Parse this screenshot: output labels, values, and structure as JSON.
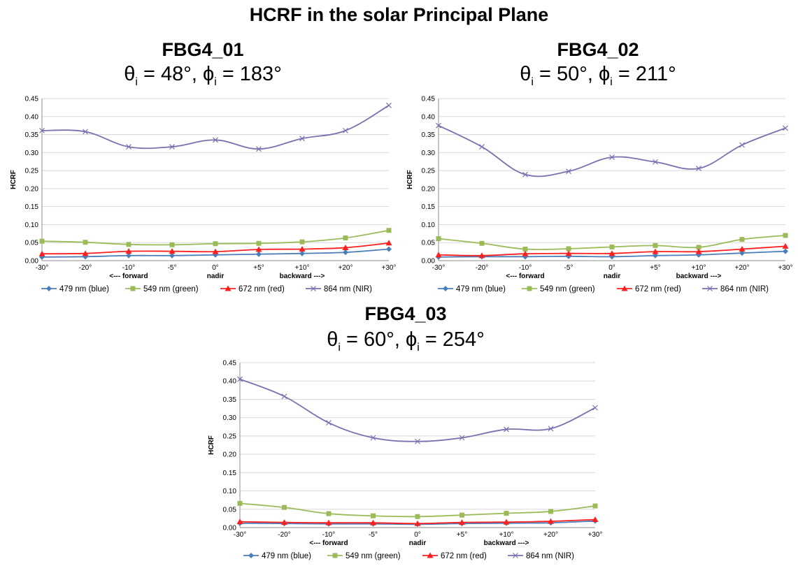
{
  "page_title": "HCRF in the solar Principal Plane",
  "colors": {
    "blue": "#4a7ebb",
    "green": "#9bbb59",
    "red": "#ff1f1f",
    "nir": "#7b6fb0"
  },
  "chart_data": [
    {
      "type": "line",
      "title": "FBG4_01",
      "subtitle": {
        "theta_value": "= 48°, ",
        "phi_value": "= 183°"
      },
      "ylabel": "HCRF",
      "ylim": [
        0,
        0.45
      ],
      "yticks": [
        "0.00",
        "0.05",
        "0.10",
        "0.15",
        "0.20",
        "0.25",
        "0.30",
        "0.35",
        "0.40",
        "0.45"
      ],
      "categories": [
        "-30°",
        "-20°",
        "-10°",
        "-5°",
        "0°",
        "+5°",
        "+10°",
        "+20°",
        "+30°"
      ],
      "direction_labels": {
        "forward": "<--- forward",
        "nadir": "nadir",
        "backward": "backward --->"
      },
      "grid": true,
      "legend_position": "bottom",
      "series": [
        {
          "name": "479 nm (blue)",
          "color": "#4a7ebb",
          "marker": "diamond",
          "values": [
            0.01,
            0.011,
            0.014,
            0.014,
            0.016,
            0.018,
            0.02,
            0.023,
            0.032
          ]
        },
        {
          "name": "549 nm (green)",
          "color": "#9bbb59",
          "marker": "square",
          "values": [
            0.054,
            0.051,
            0.045,
            0.044,
            0.047,
            0.048,
            0.052,
            0.063,
            0.084
          ]
        },
        {
          "name": "672 nm (red)",
          "color": "#ff1f1f",
          "marker": "triangle",
          "values": [
            0.019,
            0.02,
            0.026,
            0.026,
            0.025,
            0.031,
            0.032,
            0.036,
            0.049
          ]
        },
        {
          "name": "864 nm (NIR)",
          "color": "#7b6fb0",
          "marker": "x",
          "values": [
            0.361,
            0.358,
            0.316,
            0.316,
            0.335,
            0.31,
            0.339,
            0.361,
            0.431
          ]
        }
      ]
    },
    {
      "type": "line",
      "title": "FBG4_02",
      "subtitle": {
        "theta_value": "= 50°, ",
        "phi_value": "= 211°"
      },
      "ylabel": "HCRF",
      "ylim": [
        0,
        0.45
      ],
      "yticks": [
        "0.00",
        "0.05",
        "0.10",
        "0.15",
        "0.20",
        "0.25",
        "0.30",
        "0.35",
        "0.40",
        "0.45"
      ],
      "categories": [
        "-30°",
        "-20°",
        "-10°",
        "-5°",
        "0°",
        "+5°",
        "+10°",
        "+20°",
        "+30°"
      ],
      "direction_labels": {
        "forward": "<--- forward",
        "nadir": "nadir",
        "backward": "backward --->"
      },
      "grid": true,
      "legend_position": "bottom",
      "series": [
        {
          "name": "479 nm (blue)",
          "color": "#4a7ebb",
          "marker": "diamond",
          "values": [
            0.01,
            0.011,
            0.011,
            0.012,
            0.011,
            0.014,
            0.016,
            0.021,
            0.026
          ]
        },
        {
          "name": "549 nm (green)",
          "color": "#9bbb59",
          "marker": "square",
          "values": [
            0.061,
            0.048,
            0.032,
            0.033,
            0.038,
            0.042,
            0.037,
            0.059,
            0.07
          ]
        },
        {
          "name": "672 nm (red)",
          "color": "#ff1f1f",
          "marker": "triangle",
          "values": [
            0.016,
            0.014,
            0.019,
            0.02,
            0.02,
            0.025,
            0.025,
            0.032,
            0.04
          ]
        },
        {
          "name": "864 nm (NIR)",
          "color": "#7b6fb0",
          "marker": "x",
          "values": [
            0.375,
            0.316,
            0.239,
            0.248,
            0.287,
            0.274,
            0.256,
            0.321,
            0.368
          ]
        }
      ]
    },
    {
      "type": "line",
      "title": "FBG4_03",
      "subtitle": {
        "theta_value": "= 60°, ",
        "phi_value": "= 254°"
      },
      "ylabel": "HCRF",
      "ylim": [
        0,
        0.45
      ],
      "yticks": [
        "0.00",
        "0.05",
        "0.10",
        "0.15",
        "0.20",
        "0.25",
        "0.30",
        "0.35",
        "0.40",
        "0.45"
      ],
      "categories": [
        "-30°",
        "-20°",
        "-10°",
        "-5°",
        "0°",
        "+5°",
        "+10°",
        "+20°",
        "+30°"
      ],
      "direction_labels": {
        "forward": "<--- forward",
        "nadir": "nadir",
        "backward": "backward --->"
      },
      "grid": true,
      "legend_position": "bottom",
      "series": [
        {
          "name": "479 nm (blue)",
          "color": "#4a7ebb",
          "marker": "diamond",
          "values": [
            0.012,
            0.011,
            0.01,
            0.01,
            0.009,
            0.011,
            0.012,
            0.013,
            0.018
          ]
        },
        {
          "name": "549 nm (green)",
          "color": "#9bbb59",
          "marker": "square",
          "values": [
            0.066,
            0.055,
            0.038,
            0.032,
            0.03,
            0.034,
            0.039,
            0.044,
            0.059
          ]
        },
        {
          "name": "672 nm (red)",
          "color": "#ff1f1f",
          "marker": "triangle",
          "values": [
            0.016,
            0.014,
            0.013,
            0.013,
            0.011,
            0.014,
            0.015,
            0.017,
            0.022
          ]
        },
        {
          "name": "864 nm (NIR)",
          "color": "#7b6fb0",
          "marker": "x",
          "values": [
            0.405,
            0.358,
            0.286,
            0.245,
            0.235,
            0.245,
            0.268,
            0.27,
            0.327
          ]
        }
      ]
    }
  ]
}
